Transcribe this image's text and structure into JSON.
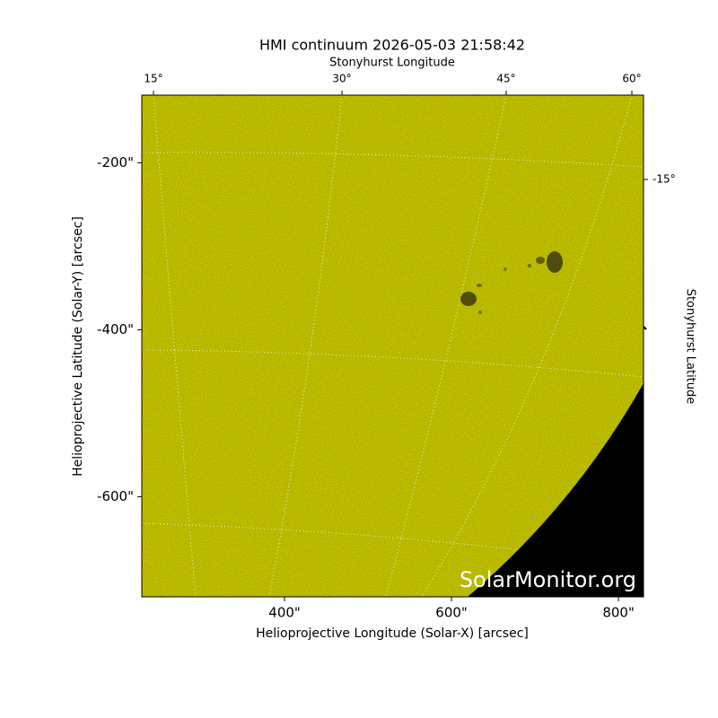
{
  "chart_data": {
    "type": "image",
    "title": "HMI continuum 2026-05-03 21:58:42",
    "xlabel": "Helioprojective Longitude (Solar-X) [arcsec]",
    "ylabel": "Helioprojective Latitude (Solar-Y) [arcsec]",
    "x2label": "Stonyhurst Longitude",
    "y2label": "Stonyhurst Latitude",
    "xlim": [
      229,
      830
    ],
    "ylim": [
      -720,
      -119
    ],
    "xticks": [
      {
        "value": 400,
        "label": "400\""
      },
      {
        "value": 600,
        "label": "600\""
      },
      {
        "value": 800,
        "label": "800\""
      }
    ],
    "yticks": [
      {
        "value": -200,
        "label": "-200\""
      },
      {
        "value": -400,
        "label": "-400\""
      },
      {
        "value": -600,
        "label": "-600\""
      }
    ],
    "x2ticks": [
      {
        "value": 15,
        "label": "15°"
      },
      {
        "value": 30,
        "label": "30°"
      },
      {
        "value": 45,
        "label": "45°"
      },
      {
        "value": 60,
        "label": "60°"
      }
    ],
    "y2ticks": [
      {
        "value": -15,
        "label": "-15°"
      }
    ],
    "watermark": "SolarMonitor.org",
    "color": "#c8c800"
  }
}
